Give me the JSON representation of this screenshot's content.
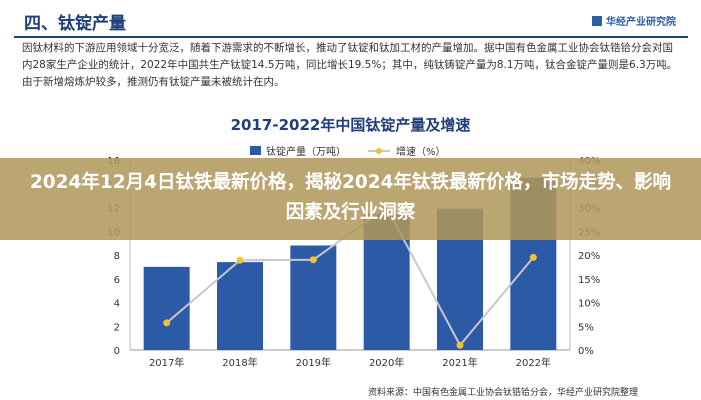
{
  "header": {
    "section_title": "四、钛锭产量",
    "brand": "华经产业研究院"
  },
  "paragraph": "因钛材料的下游应用领域十分宽泛，随着下游需求的不断增长，推动了钛锭和钛加工材的产量增加。据中国有色金属工业协会钛锆铪分会对国内28家生产企业的统计，2022年中国共生产钛锭14.5万吨，同比增长19.5%；其中，纯钛铸锭产量为8.1万吨，钛合金锭产量则是6.3万吨。由于新增熔炼炉较多，推测仍有钛锭产量未被统计在内。",
  "banner": {
    "text": "2024年12月4日钛铁最新价格，揭秘2024年钛铁最新价格，市场走势、影响因素及行业洞察"
  },
  "source": "资料来源：中国有色金属工业协会钛锆铪分会，华经产业研究院整理",
  "colors": {
    "bar": "#2d5aa6",
    "line": "#c8c8c8",
    "marker": "#f2c230",
    "banner": "#b0965a",
    "title": "#1f3f78"
  },
  "chart_data": {
    "type": "bar",
    "title": "2017-2022年中国钛锭产量及增速",
    "categories": [
      "2017年",
      "2018年",
      "2019年",
      "2020年",
      "2021年",
      "2022年"
    ],
    "series": [
      {
        "name": "钛锭产量（万吨）",
        "type": "bar",
        "axis": "left",
        "values": [
          7.0,
          7.4,
          8.8,
          11.5,
          11.9,
          14.5
        ]
      },
      {
        "name": "增速（%）",
        "type": "line",
        "axis": "right",
        "values": [
          5.7,
          18.9,
          19.0,
          30.0,
          1.0,
          19.5
        ]
      }
    ],
    "y_left": {
      "ylim": [
        0,
        16
      ],
      "ticks": [
        "0",
        "2",
        "4",
        "6",
        "8",
        "10",
        "12",
        "14",
        "16"
      ]
    },
    "y_right": {
      "ylim": [
        0,
        40
      ],
      "ticks": [
        "0%",
        "5%",
        "10%",
        "15%",
        "20%",
        "25%",
        "30%",
        "35%",
        "40%"
      ]
    },
    "legend": "top-left",
    "grid": false
  }
}
